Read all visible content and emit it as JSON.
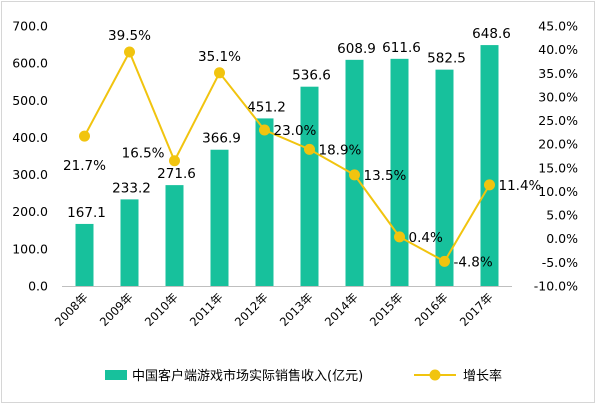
{
  "chart_data": {
    "type": "bar",
    "categories": [
      "2008年",
      "2009年",
      "2010年",
      "2011年",
      "2012年",
      "2013年",
      "2014年",
      "2015年",
      "2016年",
      "2017年"
    ],
    "series": [
      {
        "name": "中国客户端游戏市场实际销售收入(亿元)",
        "type": "bar",
        "axis": "left",
        "values": [
          167.1,
          233.2,
          271.6,
          366.9,
          451.2,
          536.6,
          608.9,
          611.6,
          582.5,
          648.6
        ],
        "labels": [
          "167.1",
          "233.2",
          "271.6",
          "366.9",
          "451.2",
          "536.6",
          "608.9",
          "611.6",
          "582.5",
          "648.6"
        ]
      },
      {
        "name": "增长率",
        "type": "line",
        "axis": "right",
        "values": [
          21.7,
          39.5,
          16.5,
          35.1,
          23.0,
          18.9,
          13.5,
          0.4,
          -4.8,
          11.4
        ],
        "labels": [
          "21.7%",
          "39.5%",
          "16.5%",
          "35.1%",
          "23.0%",
          "18.9%",
          "13.5%",
          "0.4%",
          "-4.8%",
          "11.4%"
        ]
      }
    ],
    "y_left": {
      "min": 0,
      "max": 700,
      "step": 100,
      "tick_labels": [
        "0.0",
        "100.0",
        "200.0",
        "300.0",
        "400.0",
        "500.0",
        "600.0",
        "700.0"
      ]
    },
    "y_right": {
      "min": -10,
      "max": 45,
      "step": 5,
      "tick_labels": [
        "-10.0%",
        "-5.0%",
        "0.0%",
        "5.0%",
        "10.0%",
        "15.0%",
        "20.0%",
        "25.0%",
        "30.0%",
        "35.0%",
        "40.0%",
        "45.0%"
      ]
    },
    "grid": false,
    "legend_position": "bottom",
    "colors": {
      "bar": "#17c19c",
      "line": "#f1c40f",
      "marker": "#f1c40f"
    }
  }
}
